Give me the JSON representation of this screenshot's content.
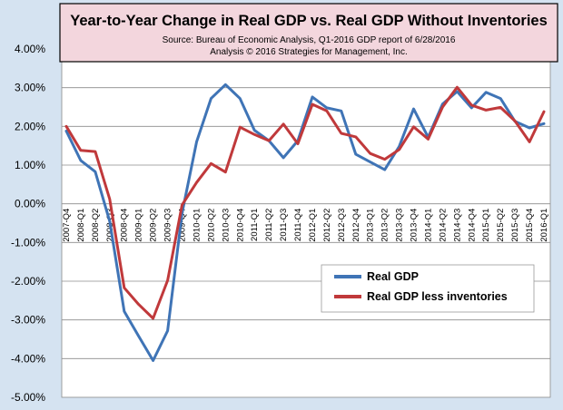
{
  "chart_data": {
    "type": "line",
    "title": "Year-to-Year Change in Real GDP vs. Real GDP Without Inventories",
    "subtitle_lines": [
      "Source: Bureau of Economic Analysis, Q1-2016 GDP report of 6/28/2016",
      "Analysis © 2016 Strategies for Management, Inc."
    ],
    "categories": [
      "2007-Q4",
      "2008-Q1",
      "2008-Q2",
      "2008-Q3",
      "2008-Q4",
      "2009-Q1",
      "2009-Q2",
      "2009-Q3",
      "2009-Q4",
      "2010-Q1",
      "2010-Q2",
      "2010-Q3",
      "2010-Q4",
      "2011-Q1",
      "2011-Q2",
      "2011-Q3",
      "2011-Q4",
      "2012-Q1",
      "2012-Q2",
      "2012-Q3",
      "2012-Q4",
      "2013-Q1",
      "2013-Q2",
      "2013-Q3",
      "2013-Q4",
      "2014-Q1",
      "2014-Q2",
      "2014-Q3",
      "2014-Q4",
      "2015-Q1",
      "2015-Q2",
      "2015-Q3",
      "2015-Q4",
      "2016-Q1"
    ],
    "y_ticks": [
      "4.00%",
      "3.00%",
      "2.00%",
      "1.00%",
      "0.00%",
      "-1.00%",
      "-2.00%",
      "-3.00%",
      "-4.00%",
      "-5.00%"
    ],
    "ylim": [
      -5,
      4
    ],
    "grid": true,
    "legend_position": "lower-right",
    "series": [
      {
        "name": "Real GDP",
        "color": "#3f74b6",
        "values": [
          1.88,
          1.12,
          0.83,
          -0.45,
          -2.78,
          -3.42,
          -4.05,
          -3.28,
          -0.24,
          1.6,
          2.72,
          3.08,
          2.72,
          1.9,
          1.63,
          1.19,
          1.63,
          2.76,
          2.48,
          2.4,
          1.28,
          1.08,
          0.88,
          1.48,
          2.45,
          1.72,
          2.58,
          2.9,
          2.48,
          2.88,
          2.72,
          2.13,
          1.96,
          2.07
        ]
      },
      {
        "name": "Real GDP less inventories",
        "color": "#c0393b",
        "values": [
          2.0,
          1.38,
          1.35,
          0.12,
          -2.17,
          -2.6,
          -2.96,
          -1.98,
          -0.03,
          0.55,
          1.04,
          0.82,
          1.98,
          1.79,
          1.63,
          2.06,
          1.55,
          2.57,
          2.4,
          1.82,
          1.73,
          1.3,
          1.15,
          1.4,
          1.99,
          1.67,
          2.5,
          3.01,
          2.55,
          2.42,
          2.49,
          2.14,
          1.6,
          2.38
        ]
      }
    ]
  }
}
